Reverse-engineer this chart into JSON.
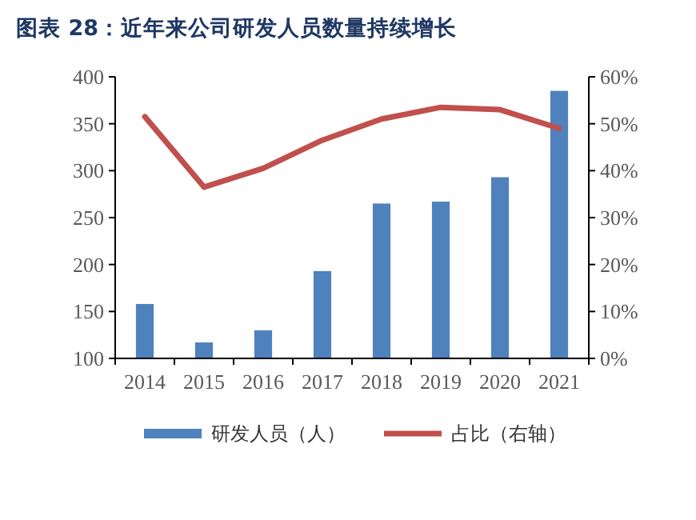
{
  "chart_data": {
    "type": "bar",
    "title": "图表 28：近年来公司研发人员数量持续增长",
    "categories": [
      "2014",
      "2015",
      "2016",
      "2017",
      "2018",
      "2019",
      "2020",
      "2021"
    ],
    "series": [
      {
        "name": "研发人员（人）",
        "color": "#4f81bd",
        "values": [
          158,
          117,
          130,
          193,
          265,
          267,
          293,
          385
        ]
      },
      {
        "name": "占比（右轴）",
        "type": "line",
        "axis": "y2",
        "color": "#c0504d",
        "values": [
          51.5,
          36.5,
          40.5,
          46.5,
          51,
          53.5,
          53,
          49
        ]
      }
    ],
    "ylim": [
      100,
      400
    ],
    "yticks": [
      100,
      150,
      200,
      250,
      300,
      350,
      400
    ],
    "y2lim": [
      0,
      60
    ],
    "y2ticks": [
      {
        "value": 0,
        "label": "0%"
      },
      {
        "value": 10,
        "label": "10%"
      },
      {
        "value": 20,
        "label": "20%"
      },
      {
        "value": 30,
        "label": "30%"
      },
      {
        "value": 40,
        "label": "40%"
      },
      {
        "value": 50,
        "label": "50%"
      },
      {
        "value": 60,
        "label": "60%"
      }
    ],
    "legend": "bottom",
    "grid": false
  }
}
